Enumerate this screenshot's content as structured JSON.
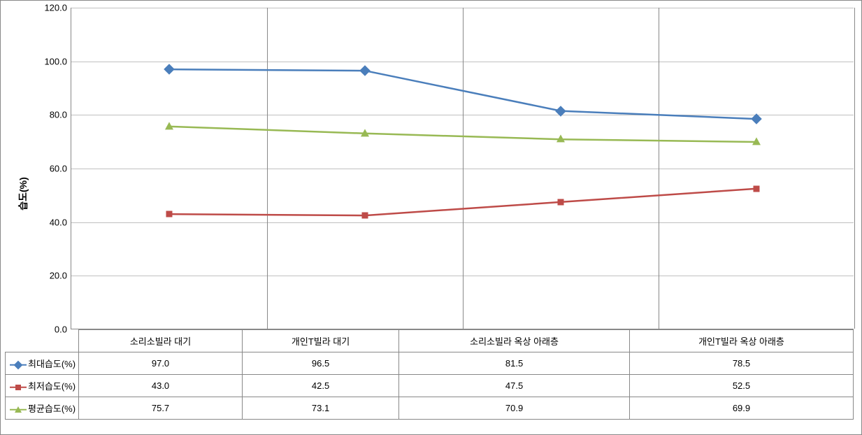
{
  "chart": {
    "type": "line",
    "y_axis_label": "습도(%)",
    "y_axis_label_fontsize": 14,
    "ylim": [
      0.0,
      120.0
    ],
    "ytick_step": 20.0,
    "y_ticks": [
      "0.0",
      "20.0",
      "40.0",
      "60.0",
      "80.0",
      "100.0",
      "120.0"
    ],
    "categories": [
      "소리소빌라 대기",
      "개인T빌라 대기",
      "소리소빌라 옥상 아래층",
      "개인T빌라 옥상 아래층"
    ],
    "grid_color": "#c0c0c0",
    "border_color": "#888888",
    "background_color": "#ffffff",
    "axis_fontsize": 13,
    "table_fontsize": 13,
    "line_width": 2.5,
    "series": [
      {
        "name": "최대습도(%)",
        "color": "#4a7ebb",
        "marker": "diamond",
        "values": [
          97.0,
          96.5,
          81.5,
          78.5
        ],
        "display_values": [
          "97.0",
          "96.5",
          "81.5",
          "78.5"
        ]
      },
      {
        "name": "최저습도(%)",
        "color": "#be4b48",
        "marker": "square",
        "values": [
          43.0,
          42.5,
          47.5,
          52.5
        ],
        "display_values": [
          "43.0",
          "42.5",
          "47.5",
          "52.5"
        ]
      },
      {
        "name": "평균습도(%)",
        "color": "#98b954",
        "marker": "triangle",
        "values": [
          75.7,
          73.1,
          70.9,
          69.9
        ],
        "display_values": [
          "75.7",
          "73.1",
          "70.9",
          "69.9"
        ]
      }
    ]
  }
}
